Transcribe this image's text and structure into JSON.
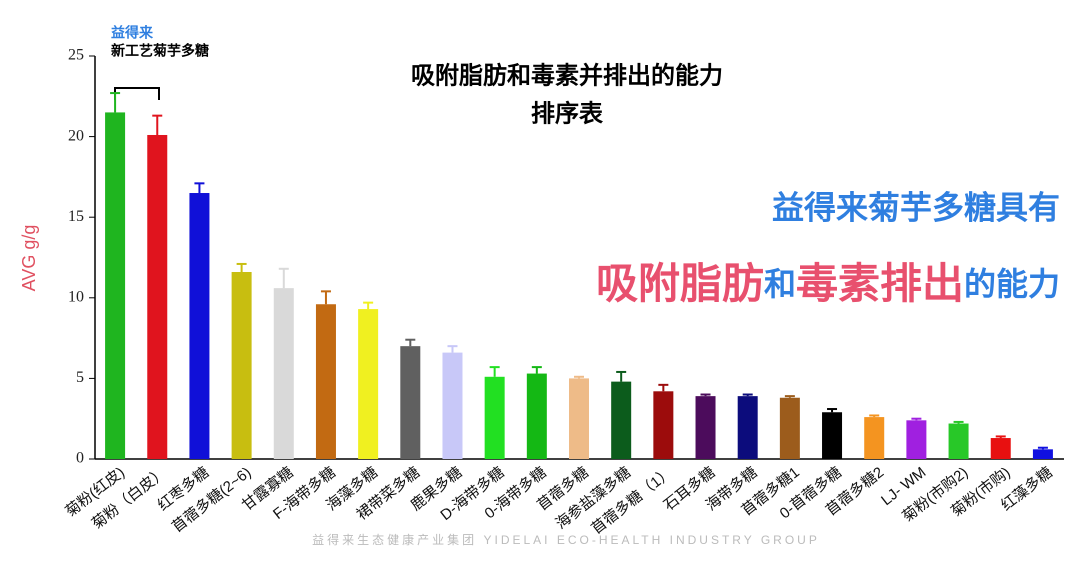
{
  "chart_data": {
    "type": "bar",
    "title": "吸附脂肪和毒素并排出的能力",
    "subtitle": "排序表",
    "y_label": "AVG g/g",
    "bracket_label": [
      "益得来",
      "新工艺菊芋多糖"
    ],
    "headline": "益得来菊芋多糖具有",
    "highlight": [
      {
        "text": "吸附脂肪",
        "color": "#e8506e"
      },
      {
        "text": "和",
        "color": "#2f7fe0"
      },
      {
        "text": "毒素排出",
        "color": "#e8506e"
      },
      {
        "text": "的能力",
        "color": "#2f7fe0"
      }
    ],
    "watermark": "益得来生态健康产业集团 YIDELAI ECO-HEALTH INDUSTRY GROUP",
    "categories": [
      "菊粉(红皮)",
      "菊粉（白皮）",
      "红枣多糖",
      "苜蓿多糖(2~6)",
      "甘露寡糖",
      "F-海带多糖",
      "海藻多糖",
      "裙带菜多糖",
      "鹿果多糖",
      "D-海带多糖",
      "0-海带多糖",
      "苜蓿多糖",
      "海参盐藻多糖",
      "苜蓿多糖（1）",
      "石耳多糖",
      "海带多糖",
      "苜蓿多糖1",
      "0-苜蓿多糖",
      "苜蓿多糖2",
      "LJ- WM",
      "菊粉(市购2)",
      "菊粉(市购)",
      "红藻多糖"
    ],
    "values": [
      21.5,
      20.1,
      16.5,
      11.6,
      10.6,
      9.6,
      9.3,
      7.0,
      6.6,
      5.1,
      5.3,
      5.0,
      4.8,
      4.2,
      3.9,
      3.9,
      3.8,
      2.9,
      2.6,
      2.4,
      2.2,
      1.3,
      0.6
    ],
    "errors": [
      1.2,
      1.2,
      0.6,
      0.5,
      1.2,
      0.8,
      0.4,
      0.4,
      0.4,
      0.6,
      0.4,
      0.1,
      0.6,
      0.4,
      0.1,
      0.1,
      0.1,
      0.2,
      0.1,
      0.1,
      0.1,
      0.1,
      0.1
    ],
    "colors": [
      "#1fb51f",
      "#e0141e",
      "#1010d8",
      "#c8be10",
      "#d9d9d9",
      "#c26a12",
      "#f0f020",
      "#606060",
      "#c8c8f8",
      "#22e022",
      "#14b814",
      "#eebb88",
      "#0c5c1c",
      "#9c0c0c",
      "#4c0c5c",
      "#0c0c7c",
      "#9c5c1c",
      "#000000",
      "#f49420",
      "#a020e0",
      "#28c828",
      "#e81010",
      "#1010e0"
    ],
    "ylim": [
      0,
      25
    ],
    "yticks": [
      0,
      5,
      10,
      15,
      20,
      25
    ]
  }
}
